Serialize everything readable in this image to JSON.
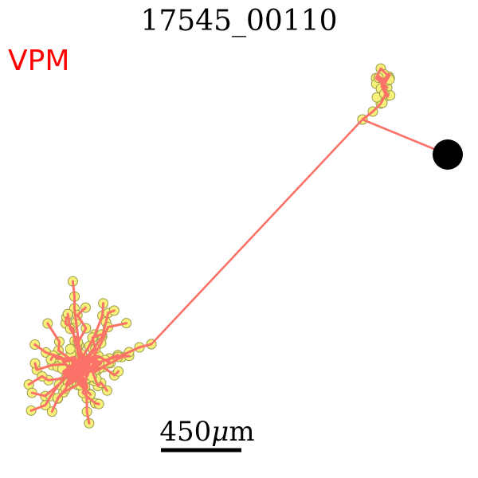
{
  "title": "17545_00110",
  "region_label": "VPM",
  "scale_bar": {
    "value": "450",
    "unit_symbol": "μ",
    "unit_suffix": "m"
  },
  "colors": {
    "region_label": "#ff0000",
    "neurite": "#fa7268",
    "node_fill": "#f7f07a",
    "node_stroke": "#9a9a4a",
    "soma": "#000000",
    "scale_bar": "#000000"
  },
  "icons": {
    "soma": "soma-dot"
  }
}
